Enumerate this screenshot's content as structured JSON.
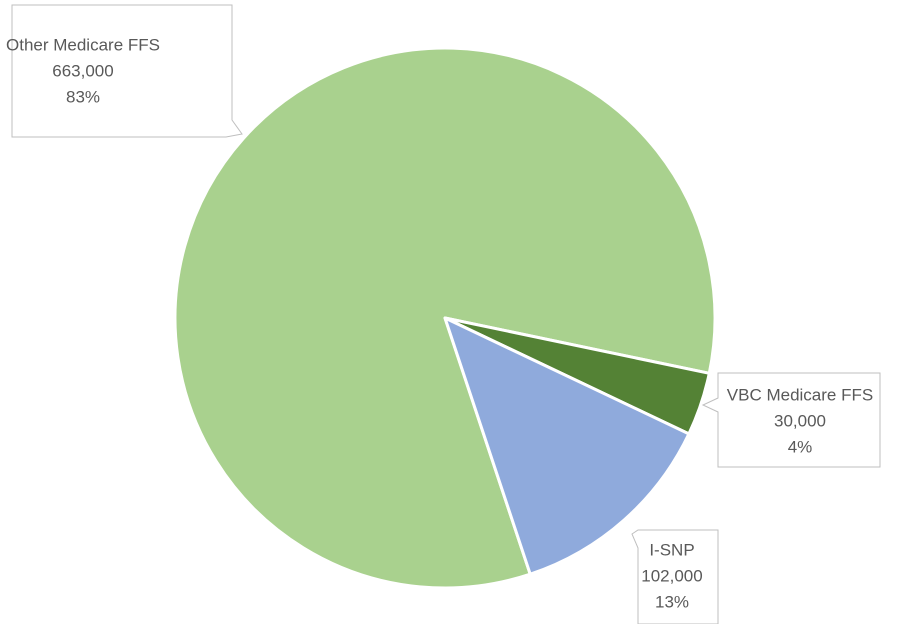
{
  "chart_data": {
    "type": "pie",
    "categories": [
      "Other Medicare FFS",
      "VBC Medicare FFS",
      "I-SNP"
    ],
    "values": [
      663000,
      30000,
      102000
    ],
    "value_labels": [
      "663,000",
      "30,000",
      "102,000"
    ],
    "percents": [
      83,
      4,
      13
    ],
    "percent_labels": [
      "83%",
      "4%",
      "13%"
    ],
    "colors": [
      "#a9d18e",
      "#548235",
      "#8faadc"
    ]
  }
}
